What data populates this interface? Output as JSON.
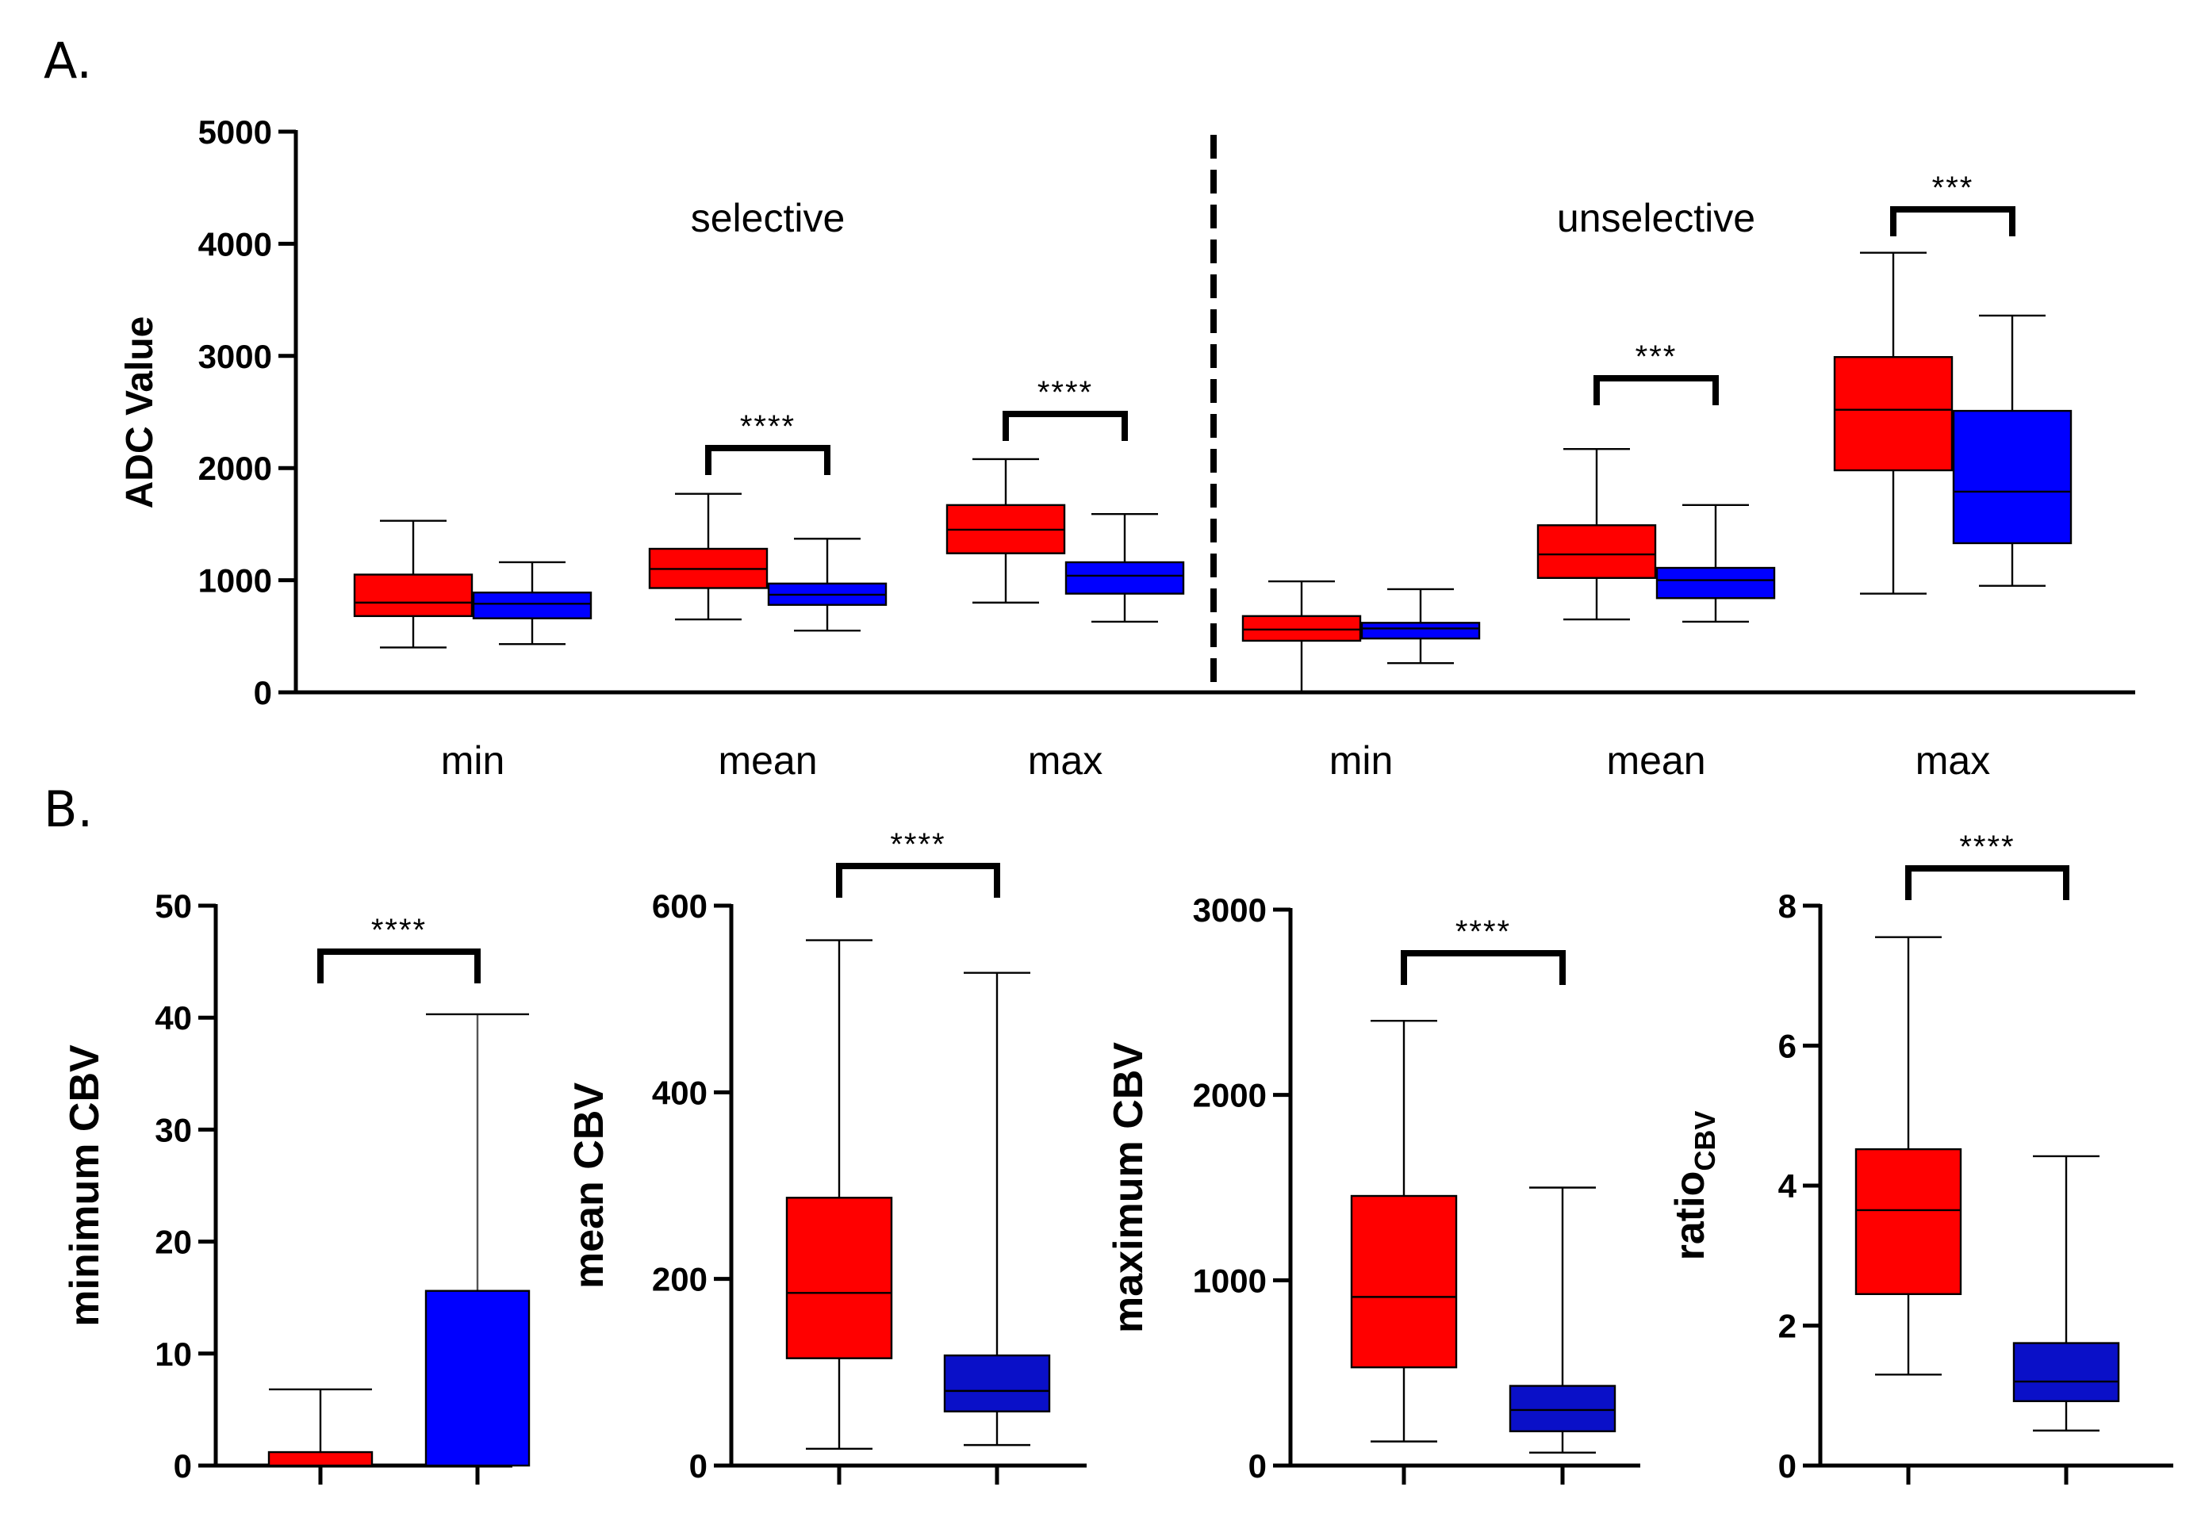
{
  "panel_labels": {
    "a": "A.",
    "b": "B."
  },
  "colors": {
    "group1": "#ff0000",
    "group2": "#0000ff",
    "group2_dark": "#0a10c8"
  },
  "chart_data": [
    {
      "type": "box",
      "panel": "A",
      "ylabel": "ADC Value",
      "ylim": [
        0,
        5000
      ],
      "yticks": [
        "0",
        "1000",
        "2000",
        "3000",
        "4000",
        "5000"
      ],
      "group_labels": [
        "selective",
        "unselective"
      ],
      "categories": [
        "min",
        "mean",
        "max",
        "min",
        "mean",
        "max"
      ],
      "boxes": [
        {
          "category": "min",
          "group": "selective",
          "red": {
            "min": 400,
            "q1": 680,
            "median": 800,
            "q3": 1050,
            "max": 1530
          },
          "blue": {
            "min": 430,
            "q1": 660,
            "median": 790,
            "q3": 890,
            "max": 1160
          },
          "sig": ""
        },
        {
          "category": "mean",
          "group": "selective",
          "red": {
            "min": 650,
            "q1": 930,
            "median": 1100,
            "q3": 1280,
            "max": 1770
          },
          "blue": {
            "min": 550,
            "q1": 780,
            "median": 870,
            "q3": 970,
            "max": 1370
          },
          "sig": "****"
        },
        {
          "category": "max",
          "group": "selective",
          "red": {
            "min": 800,
            "q1": 1240,
            "median": 1450,
            "q3": 1670,
            "max": 2080
          },
          "blue": {
            "min": 630,
            "q1": 880,
            "median": 1040,
            "q3": 1160,
            "max": 1590
          },
          "sig": "****"
        },
        {
          "category": "min",
          "group": "unselective",
          "red": {
            "min": 0,
            "q1": 460,
            "median": 560,
            "q3": 680,
            "max": 990
          },
          "blue": {
            "min": 260,
            "q1": 480,
            "median": 570,
            "q3": 620,
            "max": 920
          },
          "sig": ""
        },
        {
          "category": "mean",
          "group": "unselective",
          "red": {
            "min": 650,
            "q1": 1020,
            "median": 1230,
            "q3": 1490,
            "max": 2170
          },
          "blue": {
            "min": 630,
            "q1": 840,
            "median": 1000,
            "q3": 1110,
            "max": 1670
          },
          "sig": "***"
        },
        {
          "category": "max",
          "group": "unselective",
          "red": {
            "min": 880,
            "q1": 1980,
            "median": 2520,
            "q3": 2990,
            "max": 3920
          },
          "blue": {
            "min": 950,
            "q1": 1330,
            "median": 1790,
            "q3": 2510,
            "max": 3360
          },
          "sig": "***"
        }
      ]
    },
    {
      "type": "bar",
      "panel": "B1",
      "ylabel": "minimum CBV",
      "ylim": [
        0,
        50
      ],
      "yticks": [
        "0",
        "10",
        "20",
        "30",
        "40",
        "50"
      ],
      "bars": [
        {
          "value": 1.2,
          "error_upper": 6.8,
          "color": "red"
        },
        {
          "value": 15.6,
          "error_upper": 40.3,
          "color": "blue"
        }
      ],
      "sig": "****"
    },
    {
      "type": "box",
      "panel": "B2",
      "ylabel": "mean CBV",
      "ylim": [
        0,
        600
      ],
      "yticks": [
        "0",
        "200",
        "400",
        "600"
      ],
      "boxes": [
        {
          "color": "red",
          "min": 18,
          "q1": 115,
          "median": 185,
          "q3": 287,
          "max": 563
        },
        {
          "color": "blue",
          "min": 22,
          "q1": 58,
          "median": 80,
          "q3": 118,
          "max": 528
        }
      ],
      "sig": "****"
    },
    {
      "type": "box",
      "panel": "B3",
      "ylabel": "maximum CBV",
      "ylim": [
        0,
        3000
      ],
      "yticks": [
        "0",
        "1000",
        "2000",
        "3000"
      ],
      "boxes": [
        {
          "color": "red",
          "min": 130,
          "q1": 530,
          "median": 910,
          "q3": 1455,
          "max": 2400
        },
        {
          "color": "blue",
          "min": 70,
          "q1": 185,
          "median": 300,
          "q3": 430,
          "max": 1500
        }
      ],
      "sig": "****"
    },
    {
      "type": "box",
      "panel": "B4",
      "ylabel": "ratio",
      "ylabel_sub": "CBV",
      "ylim": [
        0,
        8
      ],
      "yticks": [
        "0",
        "2",
        "4",
        "6",
        "8"
      ],
      "boxes": [
        {
          "color": "red",
          "min": 1.3,
          "q1": 2.45,
          "median": 3.65,
          "q3": 4.52,
          "max": 7.55
        },
        {
          "color": "blue",
          "min": 0.5,
          "q1": 0.92,
          "median": 1.2,
          "q3": 1.75,
          "max": 4.42
        }
      ],
      "sig": "****"
    }
  ]
}
